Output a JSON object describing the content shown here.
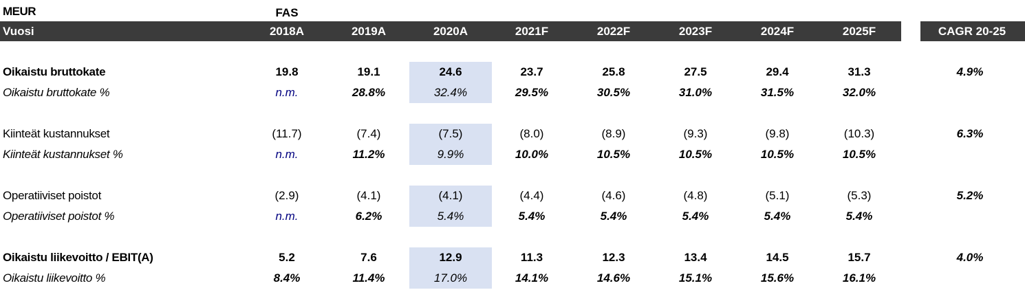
{
  "header": {
    "unit": "MEUR",
    "standard": "FAS",
    "columns": [
      "Vuosi",
      "2018A",
      "2019A",
      "2020A",
      "2021F",
      "2022F",
      "2023F",
      "2024F",
      "2025F"
    ],
    "cagr": "CAGR 20-25"
  },
  "table": {
    "rows": [
      {
        "label": "Oikaistu bruttokate",
        "values": [
          "19.8",
          "19.1",
          "24.6",
          "23.7",
          "25.8",
          "27.5",
          "29.4",
          "31.3"
        ],
        "cagr": "4.9%"
      },
      {
        "label": "Oikaistu bruttokate %",
        "values": [
          "n.m.",
          "28.8%",
          "32.4%",
          "29.5%",
          "30.5%",
          "31.0%",
          "31.5%",
          "32.0%"
        ]
      },
      {
        "label": "Kiinteät kustannukset",
        "values": [
          "(11.7)",
          "(7.4)",
          "(7.5)",
          "(8.0)",
          "(8.9)",
          "(9.3)",
          "(9.8)",
          "(10.3)"
        ],
        "cagr": "6.3%"
      },
      {
        "label": "Kiinteät kustannukset %",
        "values": [
          "n.m.",
          "11.2%",
          "9.9%",
          "10.0%",
          "10.5%",
          "10.5%",
          "10.5%",
          "10.5%"
        ]
      },
      {
        "label": "Operatiiviset poistot",
        "values": [
          "(2.9)",
          "(4.1)",
          "(4.1)",
          "(4.4)",
          "(4.6)",
          "(4.8)",
          "(5.1)",
          "(5.3)"
        ],
        "cagr": "5.2%"
      },
      {
        "label": "Operatiiviset poistot %",
        "values": [
          "n.m.",
          "6.2%",
          "5.4%",
          "5.4%",
          "5.4%",
          "5.4%",
          "5.4%",
          "5.4%"
        ]
      },
      {
        "label": "Oikaistu liikevoitto / EBIT(A)",
        "values": [
          "5.2",
          "7.6",
          "12.9",
          "11.3",
          "12.3",
          "13.4",
          "14.5",
          "15.7"
        ],
        "cagr": "4.0%"
      },
      {
        "label": "Oikaistu liikevoitto %",
        "values": [
          "8.4%",
          "11.4%",
          "17.0%",
          "14.1%",
          "14.6%",
          "15.1%",
          "15.6%",
          "16.1%"
        ]
      }
    ]
  }
}
